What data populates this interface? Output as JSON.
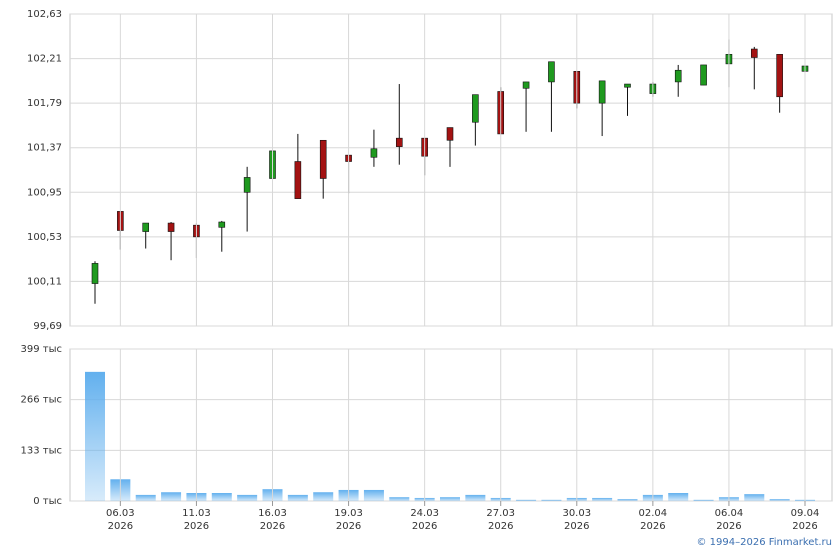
{
  "chart_data": [
    {
      "type": "candlestick",
      "up_color": "#1f9a1f",
      "down_color": "#a31212",
      "open": [
        100.09,
        100.77,
        100.58,
        100.66,
        100.64,
        100.62,
        100.95,
        101.08,
        101.24,
        101.44,
        101.3,
        101.28,
        101.46,
        101.46,
        101.56,
        101.61,
        101.9,
        101.93,
        101.99,
        102.09,
        101.79,
        101.94,
        101.88,
        101.99,
        101.96,
        102.16,
        102.3,
        102.25,
        102.09
      ],
      "high": [
        100.3,
        100.77,
        100.66,
        100.67,
        100.66,
        100.68,
        101.19,
        101.4,
        101.5,
        101.44,
        101.3,
        101.54,
        101.97,
        101.46,
        101.56,
        101.87,
        101.94,
        101.99,
        102.18,
        102.09,
        102.0,
        101.97,
        101.99,
        102.15,
        102.15,
        102.39,
        102.32,
        102.25,
        102.17
      ],
      "low": [
        99.9,
        100.41,
        100.42,
        100.31,
        100.33,
        100.39,
        100.58,
        100.99,
        100.89,
        100.89,
        100.94,
        101.19,
        101.21,
        101.11,
        101.19,
        101.39,
        101.5,
        101.52,
        101.52,
        101.74,
        101.48,
        101.67,
        101.85,
        101.85,
        101.96,
        101.94,
        101.92,
        101.7,
        101.79
      ],
      "close": [
        100.28,
        100.59,
        100.66,
        100.58,
        100.53,
        100.67,
        101.09,
        101.34,
        100.89,
        101.08,
        101.24,
        101.36,
        101.38,
        101.29,
        101.44,
        101.87,
        101.5,
        101.99,
        102.18,
        101.79,
        102.0,
        101.97,
        101.97,
        102.1,
        102.15,
        102.25,
        102.22,
        101.85,
        102.14
      ],
      "ylim": [
        99.69,
        102.63
      ],
      "yticks": [
        {
          "value": 99.69,
          "label": "99,69"
        },
        {
          "value": 100.11,
          "label": "100,11"
        },
        {
          "value": 100.53,
          "label": "100,53"
        },
        {
          "value": 100.95,
          "label": "100,95"
        },
        {
          "value": 101.37,
          "label": "101,37"
        },
        {
          "value": 101.79,
          "label": "101,79"
        },
        {
          "value": 102.21,
          "label": "102,21"
        },
        {
          "value": 102.63,
          "label": "102,63"
        }
      ],
      "grid": true
    },
    {
      "type": "bar",
      "color": "#62b0ee",
      "categories": [
        null,
        "06.03",
        null,
        null,
        "11.03",
        null,
        null,
        "16.03",
        null,
        null,
        "19.03",
        null,
        null,
        "24.03",
        null,
        null,
        "27.03",
        null,
        null,
        "30.03",
        null,
        null,
        "02.04",
        null,
        null,
        "06.04",
        null,
        null,
        "09.04"
      ],
      "category_years": [
        null,
        "2026",
        null,
        null,
        "2026",
        null,
        null,
        "2026",
        null,
        null,
        "2026",
        null,
        null,
        "2026",
        null,
        null,
        "2026",
        null,
        null,
        "2026",
        null,
        null,
        "2026",
        null,
        null,
        "2026",
        null,
        null,
        "2026"
      ],
      "values": [
        339,
        57,
        16,
        23,
        21,
        21,
        16,
        31,
        16,
        23,
        29,
        29,
        10,
        8,
        10,
        16,
        8,
        3,
        3,
        8,
        8,
        5,
        16,
        21,
        3,
        10,
        18,
        5,
        3
      ],
      "ylim": [
        0,
        399
      ],
      "yticks": [
        {
          "value": 0,
          "label": "0 тыс"
        },
        {
          "value": 133,
          "label": "133 тыс"
        },
        {
          "value": 266,
          "label": "266 тыс"
        },
        {
          "value": 399,
          "label": "399 тыс"
        }
      ],
      "grid": true
    }
  ],
  "footer": "© 1994–2026 Finmarket.ru"
}
